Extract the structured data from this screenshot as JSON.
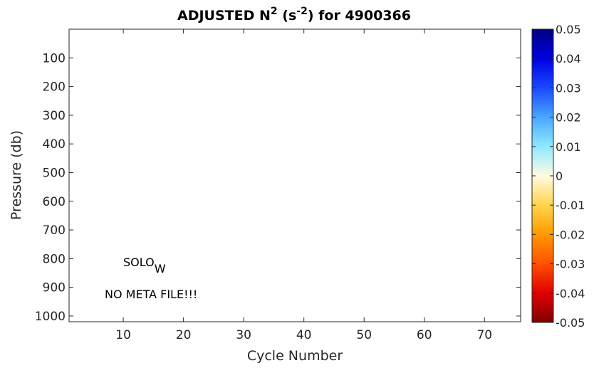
{
  "chart_data": {
    "type": "heatmap",
    "title": {
      "main": "ADJUSTED N",
      "main_sup": "2",
      "unit_open": " (s",
      "unit_sup": "-2",
      "unit_close": ")",
      "suffix": " for 4900366"
    },
    "xlabel": "Cycle Number",
    "ylabel": "Pressure (db)",
    "xlim": [
      1,
      76
    ],
    "ylim": [
      1020,
      0
    ],
    "y_reversed": true,
    "xticks": [
      10,
      20,
      30,
      40,
      50,
      60,
      70
    ],
    "yticks": [
      100,
      200,
      300,
      400,
      500,
      600,
      700,
      800,
      900,
      1000
    ],
    "grid": false,
    "values": [],
    "colorbar": {
      "limits": [
        -0.05,
        0.05
      ],
      "ticks": [
        0.05,
        0.04,
        0.03,
        0.02,
        0.01,
        0,
        -0.01,
        -0.02,
        -0.03,
        -0.04,
        -0.05
      ],
      "tick_labels": [
        "0.05",
        "0.04",
        "0.03",
        "0.02",
        "0.01",
        "0",
        "-0.01",
        "-0.02",
        "-0.03",
        "-0.04",
        "-0.05"
      ],
      "colormap_top_to_bottom": [
        "#00007f",
        "#0000e0",
        "#1a48ff",
        "#4aa6ff",
        "#8ee8ff",
        "#fffbe2",
        "#ffd44a",
        "#ff9900",
        "#ff5000",
        "#e00000",
        "#7f0000"
      ]
    },
    "annotations": [
      {
        "text": "SOLO",
        "subscript": "W",
        "x": 10,
        "y": 820
      },
      {
        "text": "NO META FILE!!!",
        "x": 7,
        "y": 930
      }
    ]
  }
}
